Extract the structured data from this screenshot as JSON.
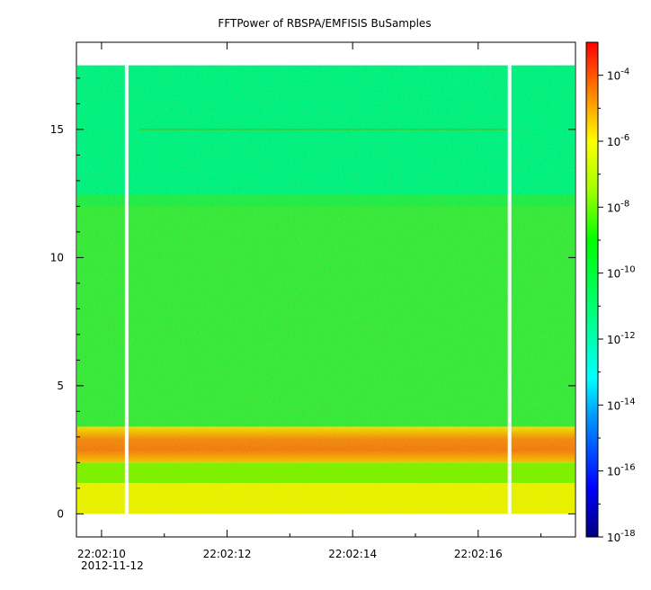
{
  "chart_data": {
    "type": "heatmap",
    "title": "FFTPower of RBSPA/EMFISIS  BuSamples",
    "xlabel": "",
    "ylabel": "",
    "date_label": "2012-11-12",
    "x_ticks": [
      "22:02:10",
      "22:02:12",
      "22:02:14",
      "22:02:16"
    ],
    "y_ticks": [
      "0",
      "5",
      "10",
      "15"
    ],
    "ylim": [
      -0.9,
      18.4
    ],
    "data_top": 17.5,
    "colorbar": {
      "scale": "log",
      "range": [
        1e-18,
        0.001
      ],
      "tick_bases": [
        "10",
        "10",
        "10",
        "10",
        "10",
        "10",
        "10",
        "10"
      ],
      "tick_exponents": [
        "-4",
        "-6",
        "-8",
        "-10",
        "-12",
        "-14",
        "-16",
        "-18"
      ]
    },
    "bands": [
      {
        "y_from": 12.2,
        "y_to": 17.5,
        "level": "1e-12"
      },
      {
        "y_from": 3.4,
        "y_to": 12.2,
        "level": "1e-10"
      },
      {
        "y_from": 2.0,
        "y_to": 3.4,
        "level": "1e-6"
      },
      {
        "y_from": 1.2,
        "y_to": 2.0,
        "level": "1e-9"
      },
      {
        "y_from": 0,
        "y_to": 1.2,
        "level": "1e-8"
      }
    ],
    "data_gaps": [
      "22:02:10.4",
      "22:02:16.5"
    ],
    "features": [
      {
        "y": 15.0,
        "note": "faint narrowband line"
      }
    ]
  }
}
